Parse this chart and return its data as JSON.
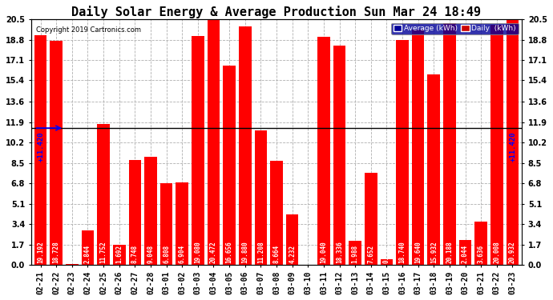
{
  "title": "Daily Solar Energy & Average Production Sun Mar 24 18:49",
  "copyright": "Copyright 2019 Cartronics.com",
  "categories": [
    "02-21",
    "02-22",
    "02-23",
    "02-24",
    "02-25",
    "02-26",
    "02-27",
    "02-28",
    "03-01",
    "03-02",
    "03-03",
    "03-04",
    "03-05",
    "03-06",
    "03-07",
    "03-08",
    "03-09",
    "03-10",
    "03-11",
    "03-12",
    "03-13",
    "03-14",
    "03-15",
    "03-16",
    "03-17",
    "03-18",
    "03-19",
    "03-20",
    "03-21",
    "03-22",
    "03-23"
  ],
  "values": [
    19.192,
    18.728,
    0.056,
    2.844,
    11.752,
    1.692,
    8.748,
    9.048,
    6.808,
    6.904,
    19.08,
    20.472,
    16.656,
    19.88,
    11.208,
    8.664,
    4.232,
    0.02,
    19.04,
    18.336,
    1.988,
    7.652,
    0.452,
    18.74,
    19.64,
    15.932,
    20.188,
    2.044,
    3.636,
    20.008,
    20.932
  ],
  "average_value": 11.42,
  "bar_color": "#ff0000",
  "average_line_color": "#000000",
  "arrow_color": "#0000ff",
  "average_label": "Average (kWh)",
  "daily_label": "Daily  (kWh)",
  "average_legend_bg": "#000099",
  "daily_legend_bg": "#cc0000",
  "ylim": [
    0.0,
    20.5
  ],
  "yticks": [
    0.0,
    1.7,
    3.4,
    5.1,
    6.8,
    8.5,
    10.2,
    11.9,
    13.6,
    15.4,
    17.1,
    18.8,
    20.5
  ],
  "background_color": "#ffffff",
  "plot_bg_color": "#ffffff",
  "grid_color": "#b0b0b0",
  "title_fontsize": 11,
  "bar_label_fontsize": 5.5,
  "bar_label_color": "#ffffff",
  "tick_label_fontsize": 7,
  "avg_label_fontsize": 6.5,
  "avg_text": "+11.420"
}
